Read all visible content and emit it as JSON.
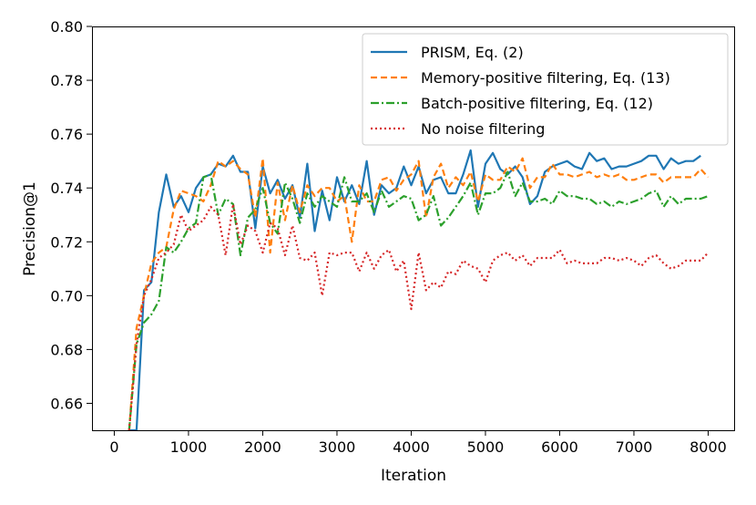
{
  "chart_data": {
    "type": "line",
    "title": "",
    "xlabel": "Iteration",
    "ylabel": "Precision@1",
    "xlim": [
      -300,
      8350
    ],
    "ylim": [
      0.65,
      0.8
    ],
    "xticks": [
      0,
      1000,
      2000,
      3000,
      4000,
      5000,
      6000,
      7000,
      8000
    ],
    "yticks": [
      0.66,
      0.68,
      0.7,
      0.72,
      0.74,
      0.76,
      0.78,
      0.8
    ],
    "xtick_labels": [
      "0",
      "1000",
      "2000",
      "3000",
      "4000",
      "5000",
      "6000",
      "7000",
      "8000"
    ],
    "ytick_labels": [
      "0.66",
      "0.68",
      "0.70",
      "0.72",
      "0.74",
      "0.76",
      "0.78",
      "0.80"
    ],
    "grid": false,
    "legend_position": "top-right",
    "series": [
      {
        "name": "PRISM, Eq. (2)",
        "color": "#1f77b4",
        "style": "solid",
        "x": [
          200,
          300,
          400,
          500,
          600,
          700,
          800,
          900,
          1000,
          1100,
          1200,
          1300,
          1400,
          1500,
          1600,
          1700,
          1800,
          1900,
          2000,
          2100,
          2200,
          2300,
          2400,
          2500,
          2600,
          2700,
          2800,
          2900,
          3000,
          3100,
          3200,
          3300,
          3400,
          3500,
          3600,
          3700,
          3800,
          3900,
          4000,
          4100,
          4200,
          4300,
          4400,
          4500,
          4600,
          4700,
          4800,
          4900,
          5000,
          5100,
          5200,
          5300,
          5400,
          5500,
          5600,
          5700,
          5800,
          5900,
          6000,
          6100,
          6200,
          6300,
          6400,
          6500,
          6600,
          6700,
          6800,
          6900,
          7000,
          7100,
          7200,
          7300,
          7400,
          7500,
          7600,
          7700,
          7800,
          7900
        ],
        "y": [
          0.648,
          0.65,
          0.702,
          0.705,
          0.731,
          0.745,
          0.733,
          0.737,
          0.731,
          0.74,
          0.744,
          0.745,
          0.749,
          0.748,
          0.752,
          0.746,
          0.746,
          0.725,
          0.748,
          0.738,
          0.743,
          0.736,
          0.741,
          0.729,
          0.749,
          0.724,
          0.739,
          0.728,
          0.744,
          0.735,
          0.741,
          0.734,
          0.75,
          0.73,
          0.741,
          0.738,
          0.74,
          0.748,
          0.741,
          0.748,
          0.738,
          0.743,
          0.744,
          0.738,
          0.738,
          0.745,
          0.754,
          0.733,
          0.749,
          0.753,
          0.747,
          0.745,
          0.748,
          0.744,
          0.734,
          0.737,
          0.746,
          0.748,
          0.749,
          0.75,
          0.748,
          0.747,
          0.753,
          0.75,
          0.751,
          0.747,
          0.748,
          0.748,
          0.749,
          0.75,
          0.752,
          0.752,
          0.747,
          0.751,
          0.749,
          0.75,
          0.75,
          0.752
        ]
      },
      {
        "name": "Memory-positive filtering, Eq. (13)",
        "color": "#ff7f0e",
        "style": "dashed",
        "x": [
          200,
          300,
          400,
          500,
          600,
          700,
          800,
          900,
          1000,
          1100,
          1200,
          1300,
          1400,
          1500,
          1600,
          1700,
          1800,
          1900,
          2000,
          2100,
          2200,
          2300,
          2400,
          2500,
          2600,
          2700,
          2800,
          2900,
          3000,
          3100,
          3200,
          3300,
          3400,
          3500,
          3600,
          3700,
          3800,
          3900,
          4000,
          4100,
          4200,
          4300,
          4400,
          4500,
          4600,
          4700,
          4800,
          4900,
          5000,
          5100,
          5200,
          5300,
          5400,
          5500,
          5600,
          5700,
          5800,
          5900,
          6000,
          6100,
          6200,
          6300,
          6400,
          6500,
          6600,
          6700,
          6800,
          6900,
          7000,
          7100,
          7200,
          7300,
          7400,
          7500,
          7600,
          7700,
          7800,
          7900,
          8000
        ],
        "y": [
          0.648,
          0.688,
          0.7,
          0.712,
          0.716,
          0.718,
          0.732,
          0.739,
          0.738,
          0.737,
          0.735,
          0.741,
          0.75,
          0.748,
          0.75,
          0.747,
          0.745,
          0.729,
          0.751,
          0.716,
          0.742,
          0.728,
          0.741,
          0.731,
          0.741,
          0.737,
          0.74,
          0.74,
          0.735,
          0.737,
          0.72,
          0.741,
          0.735,
          0.735,
          0.743,
          0.744,
          0.739,
          0.743,
          0.745,
          0.75,
          0.729,
          0.744,
          0.749,
          0.74,
          0.744,
          0.741,
          0.746,
          0.735,
          0.745,
          0.743,
          0.743,
          0.748,
          0.746,
          0.751,
          0.74,
          0.744,
          0.744,
          0.749,
          0.745,
          0.745,
          0.744,
          0.745,
          0.746,
          0.744,
          0.745,
          0.744,
          0.745,
          0.743,
          0.743,
          0.744,
          0.745,
          0.745,
          0.742,
          0.744,
          0.744,
          0.744,
          0.744,
          0.747,
          0.744
        ]
      },
      {
        "name": "Batch-positive filtering, Eq. (12)",
        "color": "#2ca02c",
        "style": "dashdot",
        "x": [
          200,
          300,
          400,
          500,
          600,
          700,
          800,
          900,
          1000,
          1100,
          1200,
          1300,
          1400,
          1500,
          1600,
          1700,
          1800,
          1900,
          2000,
          2100,
          2200,
          2300,
          2400,
          2500,
          2600,
          2700,
          2800,
          2900,
          3000,
          3100,
          3200,
          3300,
          3400,
          3500,
          3600,
          3700,
          3800,
          3900,
          4000,
          4100,
          4200,
          4300,
          4400,
          4500,
          4600,
          4700,
          4800,
          4900,
          5000,
          5100,
          5200,
          5300,
          5400,
          5500,
          5600,
          5700,
          5800,
          5900,
          6000,
          6100,
          6200,
          6300,
          6400,
          6500,
          6600,
          6700,
          6800,
          6900,
          7000,
          7100,
          7200,
          7300,
          7400,
          7500,
          7600,
          7700,
          7800,
          7900,
          8000
        ],
        "y": [
          0.648,
          0.682,
          0.69,
          0.693,
          0.698,
          0.718,
          0.716,
          0.72,
          0.725,
          0.727,
          0.744,
          0.745,
          0.73,
          0.736,
          0.734,
          0.715,
          0.729,
          0.732,
          0.74,
          0.727,
          0.723,
          0.742,
          0.736,
          0.727,
          0.738,
          0.733,
          0.737,
          0.735,
          0.733,
          0.744,
          0.735,
          0.735,
          0.738,
          0.731,
          0.739,
          0.733,
          0.735,
          0.737,
          0.736,
          0.728,
          0.73,
          0.737,
          0.726,
          0.729,
          0.733,
          0.737,
          0.742,
          0.73,
          0.738,
          0.738,
          0.74,
          0.746,
          0.737,
          0.742,
          0.735,
          0.735,
          0.736,
          0.734,
          0.739,
          0.737,
          0.737,
          0.736,
          0.736,
          0.734,
          0.735,
          0.733,
          0.735,
          0.734,
          0.735,
          0.736,
          0.738,
          0.739,
          0.733,
          0.737,
          0.734,
          0.736,
          0.736,
          0.736,
          0.737
        ]
      },
      {
        "name": "No noise filtering",
        "color": "#d62728",
        "style": "dotted",
        "x": [
          200,
          300,
          400,
          500,
          600,
          700,
          800,
          900,
          1000,
          1100,
          1200,
          1300,
          1400,
          1500,
          1600,
          1700,
          1800,
          1900,
          2000,
          2100,
          2200,
          2300,
          2400,
          2500,
          2600,
          2700,
          2800,
          2900,
          3000,
          3100,
          3200,
          3300,
          3400,
          3500,
          3600,
          3700,
          3800,
          3900,
          4000,
          4100,
          4200,
          4300,
          4400,
          4500,
          4600,
          4700,
          4800,
          4900,
          5000,
          5100,
          5200,
          5300,
          5400,
          5500,
          5600,
          5700,
          5800,
          5900,
          6000,
          6100,
          6200,
          6300,
          6400,
          6500,
          6600,
          6700,
          6800,
          6900,
          7000,
          7100,
          7200,
          7300,
          7400,
          7500,
          7600,
          7700,
          7800,
          7900,
          8000
        ],
        "y": [
          0.648,
          0.682,
          0.7,
          0.706,
          0.714,
          0.716,
          0.719,
          0.73,
          0.724,
          0.726,
          0.728,
          0.733,
          0.73,
          0.715,
          0.734,
          0.719,
          0.726,
          0.724,
          0.716,
          0.727,
          0.725,
          0.715,
          0.726,
          0.714,
          0.713,
          0.716,
          0.7,
          0.716,
          0.715,
          0.716,
          0.716,
          0.709,
          0.716,
          0.71,
          0.715,
          0.717,
          0.709,
          0.713,
          0.695,
          0.716,
          0.702,
          0.705,
          0.703,
          0.709,
          0.708,
          0.713,
          0.711,
          0.71,
          0.705,
          0.713,
          0.715,
          0.716,
          0.713,
          0.715,
          0.711,
          0.714,
          0.714,
          0.714,
          0.717,
          0.712,
          0.713,
          0.712,
          0.712,
          0.712,
          0.714,
          0.714,
          0.713,
          0.714,
          0.713,
          0.711,
          0.714,
          0.715,
          0.712,
          0.71,
          0.711,
          0.713,
          0.713,
          0.713,
          0.716
        ]
      }
    ]
  }
}
